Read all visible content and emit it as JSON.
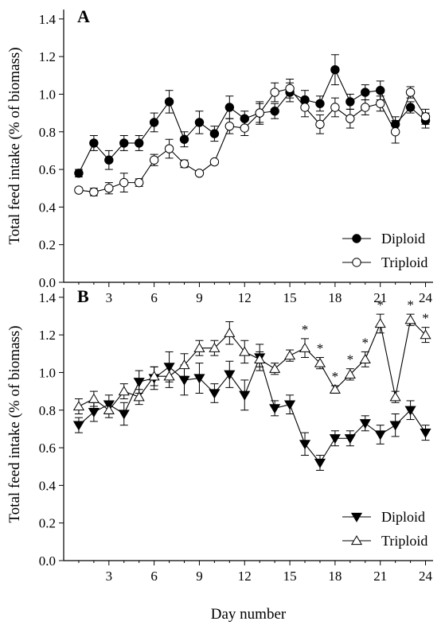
{
  "chart_data": [
    {
      "type": "line",
      "panel_label": "A",
      "ylabel": "Total feed intake (% of biomass)",
      "xlabel": "",
      "xlim": [
        0,
        24.5
      ],
      "ylim": [
        0,
        1.45
      ],
      "xticks": [
        3,
        6,
        9,
        12,
        15,
        18,
        21,
        24
      ],
      "yticks": [
        "0.0",
        "0.2",
        "0.4",
        "0.6",
        "0.8",
        "1.0",
        "1.2",
        "1.4"
      ],
      "legend_position": "bottom-right",
      "x": [
        1,
        2,
        3,
        4,
        5,
        6,
        7,
        8,
        9,
        10,
        11,
        12,
        13,
        14,
        15,
        16,
        17,
        18,
        19,
        20,
        21,
        22,
        23,
        24
      ],
      "series": [
        {
          "name": "Diploid",
          "marker": "filled-circle",
          "values": [
            0.58,
            0.74,
            0.65,
            0.74,
            0.74,
            0.85,
            0.96,
            0.76,
            0.85,
            0.79,
            0.93,
            0.87,
            0.9,
            0.91,
            1.01,
            0.97,
            0.95,
            1.13,
            0.96,
            1.01,
            1.02,
            0.84,
            0.93,
            0.86
          ],
          "errors": [
            0.02,
            0.04,
            0.05,
            0.04,
            0.04,
            0.05,
            0.06,
            0.04,
            0.06,
            0.04,
            0.06,
            0.04,
            0.05,
            0.04,
            0.05,
            0.05,
            0.04,
            0.08,
            0.04,
            0.04,
            0.05,
            0.04,
            0.03,
            0.04
          ]
        },
        {
          "name": "Triploid",
          "marker": "open-circle",
          "values": [
            0.49,
            0.48,
            0.5,
            0.53,
            0.53,
            0.65,
            0.71,
            0.63,
            0.58,
            0.64,
            0.83,
            0.82,
            0.9,
            1.01,
            1.03,
            0.93,
            0.84,
            0.93,
            0.87,
            0.93,
            0.95,
            0.8,
            1.01,
            0.88
          ],
          "errors": [
            0.01,
            0.02,
            0.03,
            0.05,
            0.02,
            0.03,
            0.05,
            0.02,
            0.01,
            0.01,
            0.04,
            0.04,
            0.06,
            0.05,
            0.05,
            0.05,
            0.05,
            0.05,
            0.05,
            0.04,
            0.04,
            0.06,
            0.03,
            0.04
          ]
        }
      ]
    },
    {
      "type": "line",
      "panel_label": "B",
      "ylabel": "Total feed intake (% of biomass)",
      "xlabel": "Day number",
      "xlim": [
        0,
        24.5
      ],
      "ylim": [
        0,
        1.45
      ],
      "xticks": [
        3,
        6,
        9,
        12,
        15,
        18,
        21,
        24
      ],
      "yticks": [
        "0.0",
        "0.2",
        "0.4",
        "0.6",
        "0.8",
        "1.0",
        "1.2",
        "1.4"
      ],
      "legend_position": "bottom-right",
      "x": [
        1,
        2,
        3,
        4,
        5,
        6,
        7,
        8,
        9,
        10,
        11,
        12,
        13,
        14,
        15,
        16,
        17,
        18,
        19,
        20,
        21,
        22,
        23,
        24
      ],
      "series": [
        {
          "name": "Diploid",
          "marker": "filled-triangle-down",
          "values": [
            0.72,
            0.79,
            0.83,
            0.78,
            0.95,
            0.97,
            1.03,
            0.96,
            0.97,
            0.89,
            0.99,
            0.88,
            1.08,
            0.81,
            0.83,
            0.62,
            0.52,
            0.65,
            0.65,
            0.73,
            0.67,
            0.72,
            0.8,
            0.68
          ],
          "errors": [
            0.04,
            0.05,
            0.05,
            0.06,
            0.06,
            0.06,
            0.08,
            0.08,
            0.08,
            0.05,
            0.07,
            0.08,
            0.07,
            0.04,
            0.05,
            0.06,
            0.04,
            0.04,
            0.04,
            0.04,
            0.05,
            0.06,
            0.05,
            0.04
          ]
        },
        {
          "name": "Triploid",
          "marker": "open-triangle-up",
          "values": [
            0.82,
            0.86,
            0.8,
            0.9,
            0.87,
            0.98,
            0.98,
            1.04,
            1.13,
            1.13,
            1.21,
            1.11,
            1.07,
            1.02,
            1.09,
            1.13,
            1.05,
            0.91,
            0.99,
            1.07,
            1.26,
            0.87,
            1.28,
            1.2
          ],
          "errors": [
            0.04,
            0.04,
            0.04,
            0.04,
            0.04,
            0.05,
            0.06,
            0.06,
            0.04,
            0.04,
            0.06,
            0.06,
            0.04,
            0.03,
            0.03,
            0.05,
            0.03,
            0.02,
            0.03,
            0.04,
            0.05,
            0.03,
            0.03,
            0.04
          ]
        }
      ],
      "significance_marks": [
        {
          "x": 16,
          "text": "*"
        },
        {
          "x": 17,
          "text": "*"
        },
        {
          "x": 18,
          "text": "*"
        },
        {
          "x": 19,
          "text": "*"
        },
        {
          "x": 20,
          "text": "*"
        },
        {
          "x": 21,
          "text": "*"
        },
        {
          "x": 23,
          "text": "*"
        },
        {
          "x": 24,
          "text": "*"
        }
      ]
    }
  ]
}
